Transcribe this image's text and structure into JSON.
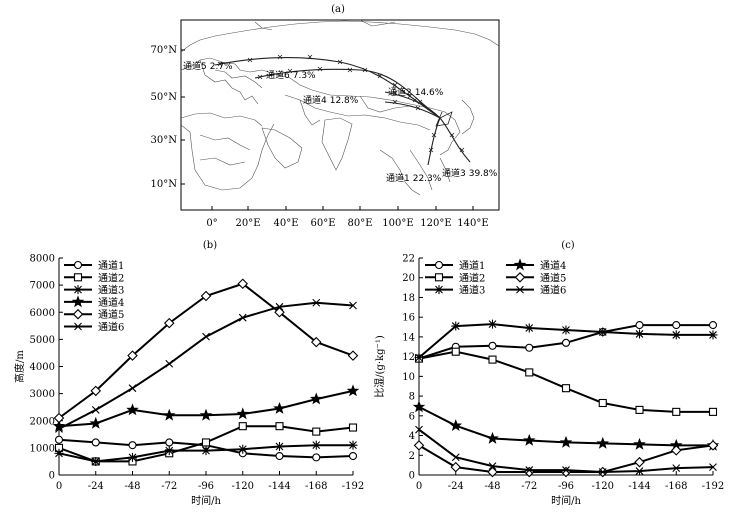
{
  "panel_labels": [
    "(a)",
    "(b)",
    "(c)"
  ],
  "map": {
    "lat_ticks": [
      "70°N",
      "50°N",
      "30°N",
      "10°N"
    ],
    "lon_ticks": [
      "0°",
      "20°E",
      "40°E",
      "60°E",
      "80°E",
      "100°E",
      "120°E",
      "140°E"
    ],
    "channel_labels": [
      {
        "name": "通道5",
        "pct": "2.7%"
      },
      {
        "name": "通道6",
        "pct": "7.3%"
      },
      {
        "name": "通道2",
        "pct": "14.6%"
      },
      {
        "name": "通道4",
        "pct": "12.8%"
      },
      {
        "name": "通道1",
        "pct": "22.3%"
      },
      {
        "name": "通道3",
        "pct": "39.8%"
      }
    ]
  },
  "chart_data": [
    {
      "type": "line",
      "ylabel": "高度/m",
      "xlabel": "时间/h",
      "x": [
        0,
        -24,
        -48,
        -72,
        -96,
        -120,
        -144,
        -168,
        -192
      ],
      "x_tick_labels": [
        "0",
        "-24",
        "-48",
        "-72",
        "-96",
        "-120",
        "-144",
        "-168",
        "-192"
      ],
      "ylim": [
        0,
        8000
      ],
      "y_ticks": [
        0,
        1000,
        2000,
        3000,
        4000,
        5000,
        6000,
        7000,
        8000
      ],
      "legend_position": "top-left",
      "series": [
        {
          "name": "通道1",
          "marker": "circle",
          "values": [
            1300,
            1200,
            1100,
            1200,
            1100,
            800,
            700,
            650,
            700
          ]
        },
        {
          "name": "通道2",
          "marker": "square",
          "values": [
            1000,
            500,
            500,
            800,
            1200,
            1800,
            1800,
            1600,
            1750
          ]
        },
        {
          "name": "通道3",
          "marker": "asterisk",
          "values": [
            800,
            500,
            650,
            900,
            900,
            950,
            1050,
            1100,
            1100
          ]
        },
        {
          "name": "通道4",
          "marker": "star",
          "values": [
            1800,
            1900,
            2400,
            2200,
            2200,
            2250,
            2450,
            2800,
            3100
          ]
        },
        {
          "name": "通道5",
          "marker": "diamond",
          "values": [
            2100,
            3100,
            4400,
            5600,
            6600,
            7050,
            6000,
            4900,
            4400
          ]
        },
        {
          "name": "通道6",
          "marker": "x",
          "values": [
            1700,
            2400,
            3200,
            4100,
            5100,
            5800,
            6200,
            6350,
            6250
          ]
        }
      ]
    },
    {
      "type": "line",
      "ylabel": "比湿/(g·kg⁻¹)",
      "xlabel": "时间/h",
      "x": [
        0,
        -24,
        -48,
        -72,
        -96,
        -120,
        -144,
        -168,
        -192
      ],
      "x_tick_labels": [
        "0",
        "-24",
        "-48",
        "-72",
        "-96",
        "-120",
        "-144",
        "-168",
        "-192"
      ],
      "ylim": [
        0,
        22
      ],
      "y_ticks": [
        0,
        2,
        4,
        6,
        8,
        10,
        12,
        14,
        16,
        18,
        20,
        22
      ],
      "legend_position": "top",
      "series": [
        {
          "name": "通道1",
          "marker": "circle",
          "values": [
            11.8,
            13.0,
            13.1,
            12.9,
            13.4,
            14.5,
            15.2,
            15.2,
            15.2
          ]
        },
        {
          "name": "通道2",
          "marker": "square",
          "values": [
            11.8,
            12.5,
            11.7,
            10.4,
            8.8,
            7.3,
            6.6,
            6.4,
            6.4
          ]
        },
        {
          "name": "通道3",
          "marker": "asterisk",
          "values": [
            11.9,
            15.1,
            15.3,
            14.9,
            14.7,
            14.5,
            14.3,
            14.2,
            14.2
          ]
        },
        {
          "name": "通道4",
          "marker": "star",
          "values": [
            6.9,
            5.0,
            3.7,
            3.5,
            3.3,
            3.2,
            3.1,
            3.0,
            3.0
          ]
        },
        {
          "name": "通道5",
          "marker": "diamond",
          "values": [
            3.0,
            0.8,
            0.3,
            0.3,
            0.3,
            0.3,
            1.3,
            2.5,
            3.0
          ]
        },
        {
          "name": "通道6",
          "marker": "x",
          "values": [
            4.6,
            1.8,
            0.9,
            0.5,
            0.5,
            0.3,
            0.4,
            0.7,
            0.8
          ]
        }
      ]
    }
  ]
}
